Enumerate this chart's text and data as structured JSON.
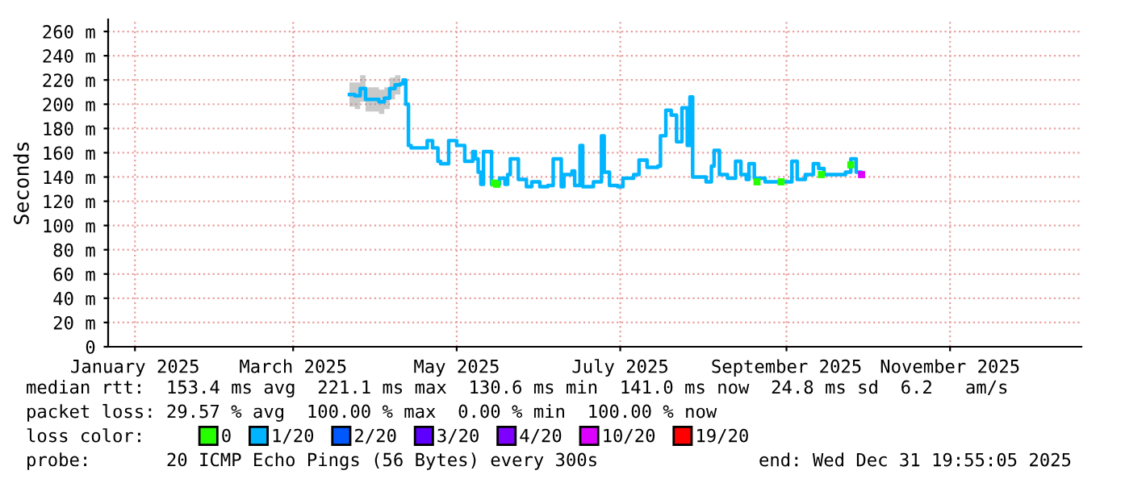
{
  "chart_data": {
    "type": "step",
    "ylabel": "Seconds",
    "x": [
      "2025-03-22",
      "2025-03-24",
      "2025-03-26",
      "2025-03-28",
      "2025-03-31",
      "2025-04-02",
      "2025-04-04",
      "2025-04-06",
      "2025-04-08",
      "2025-04-10",
      "2025-04-11",
      "2025-04-12",
      "2025-04-13",
      "2025-04-14",
      "2025-04-18",
      "2025-04-20",
      "2025-04-22",
      "2025-04-24",
      "2025-04-25",
      "2025-04-28",
      "2025-05-01",
      "2025-05-04",
      "2025-05-05",
      "2025-05-07",
      "2025-05-08",
      "2025-05-09",
      "2025-05-10",
      "2025-05-11",
      "2025-05-14",
      "2025-05-17",
      "2025-05-19",
      "2025-05-20",
      "2025-05-21",
      "2025-05-24",
      "2025-05-27",
      "2025-05-29",
      "2025-06-01",
      "2025-06-04",
      "2025-06-05",
      "2025-06-06",
      "2025-06-09",
      "2025-06-10",
      "2025-06-13",
      "2025-06-14",
      "2025-06-16",
      "2025-06-17",
      "2025-06-21",
      "2025-06-24",
      "2025-06-25",
      "2025-06-27",
      "2025-06-30",
      "2025-07-02",
      "2025-07-06",
      "2025-07-08",
      "2025-07-11",
      "2025-07-15",
      "2025-07-16",
      "2025-07-18",
      "2025-07-20",
      "2025-07-22",
      "2025-07-24",
      "2025-07-26",
      "2025-07-27",
      "2025-07-28",
      "2025-08-02",
      "2025-08-04",
      "2025-08-05",
      "2025-08-07",
      "2025-08-10",
      "2025-08-13",
      "2025-08-15",
      "2025-08-17",
      "2025-08-18",
      "2025-08-20",
      "2025-08-24",
      "2025-08-30",
      "2025-09-01",
      "2025-09-03",
      "2025-09-05",
      "2025-09-08",
      "2025-09-11",
      "2025-09-13",
      "2025-09-15",
      "2025-09-19",
      "2025-09-23",
      "2025-09-25",
      "2025-09-27",
      "2025-09-29"
    ],
    "series": [
      {
        "name": "1/20",
        "color": "#00b4ff",
        "values": [
          208,
          207,
          213,
          204,
          204,
          202,
          205,
          213,
          216,
          217,
          220,
          200,
          166,
          164,
          164,
          170,
          164,
          153,
          151,
          170,
          166,
          153,
          153,
          161,
          155,
          144,
          134,
          161,
          134,
          139,
          134,
          142,
          155,
          138,
          132,
          136,
          132,
          133,
          133,
          155,
          132,
          142,
          145,
          133,
          166,
          132,
          136,
          174,
          144,
          133,
          132,
          139,
          142,
          154,
          148,
          149,
          174,
          195,
          191,
          169,
          197,
          166,
          206,
          140,
          136,
          149,
          162,
          142,
          139,
          153,
          142,
          138,
          151,
          139,
          136,
          136,
          136,
          153,
          138,
          142,
          151,
          147,
          142,
          142,
          144,
          155,
          144,
          142
        ],
        "lower": [
          198,
          196,
          202,
          194,
          194,
          192,
          196,
          204,
          208,
          210,
          null,
          null,
          null,
          null,
          null,
          null,
          null,
          null,
          null,
          null,
          null,
          null,
          null,
          null,
          null,
          null,
          null,
          null,
          null,
          null,
          null,
          null,
          null,
          null,
          null,
          null,
          null,
          null,
          null,
          null,
          null,
          null,
          null,
          null,
          null,
          null,
          null,
          null,
          null,
          null,
          null,
          null,
          null,
          null,
          null,
          null,
          null,
          null,
          null,
          null,
          null,
          null,
          null,
          null,
          null,
          null,
          null,
          null,
          null,
          null,
          null,
          null,
          null,
          null,
          null,
          null,
          null,
          null,
          null,
          null,
          null,
          null,
          null,
          null,
          null,
          null,
          null,
          null
        ],
        "upper": [
          218,
          218,
          224,
          214,
          214,
          212,
          214,
          222,
          224,
          226,
          null,
          null,
          null,
          null,
          null,
          null,
          null,
          null,
          null,
          null,
          null,
          null,
          null,
          null,
          null,
          null,
          null,
          null,
          null,
          null,
          null,
          null,
          null,
          null,
          null,
          null,
          null,
          null,
          null,
          null,
          null,
          null,
          null,
          null,
          null,
          null,
          null,
          null,
          null,
          null,
          null,
          null,
          null,
          null,
          null,
          null,
          null,
          null,
          null,
          null,
          null,
          null,
          null,
          null,
          null,
          null,
          null,
          null,
          null,
          null,
          null,
          null,
          null,
          null,
          null,
          null,
          null,
          null,
          null,
          null,
          null,
          null,
          null,
          null,
          null,
          null,
          null,
          null
        ]
      },
      {
        "name": "0",
        "color": "#26ff00",
        "type": "scatter",
        "marker": "square",
        "x": [
          "2025-05-15",
          "2025-05-16",
          "2025-08-21",
          "2025-08-30",
          "2025-09-14",
          "2025-09-25"
        ],
        "values": [
          135,
          134,
          136,
          136,
          142,
          150
        ]
      },
      {
        "name": "2/20",
        "color": "#0059ff",
        "type": "scatter",
        "values": [
          null,
          null,
          null,
          null,
          null,
          null,
          null,
          null,
          null,
          null,
          null,
          null,
          null,
          null,
          null,
          null,
          null,
          null,
          null,
          null,
          null,
          null,
          null,
          null,
          null,
          null,
          null,
          null,
          null,
          null,
          null,
          null,
          null,
          null,
          null,
          null,
          null,
          null,
          null,
          null,
          null,
          null,
          null,
          null,
          null,
          null,
          null,
          null,
          null,
          null,
          null,
          null,
          null,
          null,
          null,
          null,
          null,
          null,
          null,
          null,
          null,
          null,
          null,
          null,
          null,
          null,
          null,
          null,
          null,
          null,
          null,
          null,
          null,
          null,
          null,
          null,
          null,
          null,
          null,
          null,
          null,
          null,
          null,
          null,
          null,
          null,
          null,
          null
        ]
      },
      {
        "name": "3/20",
        "color": "#5e00ff",
        "type": "scatter",
        "values": [
          null,
          null,
          null,
          null,
          null,
          null,
          null,
          null,
          null,
          null,
          null,
          null,
          null,
          null,
          null,
          null,
          null,
          null,
          null,
          null,
          null,
          null,
          null,
          null,
          null,
          null,
          null,
          null,
          null,
          null,
          null,
          null,
          null,
          null,
          null,
          null,
          null,
          null,
          null,
          null,
          null,
          null,
          null,
          null,
          null,
          null,
          null,
          null,
          null,
          null,
          null,
          null,
          null,
          null,
          null,
          null,
          null,
          null,
          null,
          null,
          null,
          null,
          null,
          null,
          null,
          null,
          null,
          null,
          null,
          null,
          null,
          null,
          null,
          null,
          null,
          null,
          null,
          null,
          null,
          null,
          null,
          null,
          null,
          null,
          null,
          null,
          null,
          null
        ]
      },
      {
        "name": "4/20",
        "color": "#7e00ff",
        "type": "scatter",
        "values": [
          null,
          null,
          null,
          null,
          null,
          null,
          null,
          null,
          null,
          null,
          null,
          null,
          null,
          null,
          null,
          null,
          null,
          null,
          null,
          null,
          null,
          null,
          null,
          null,
          null,
          null,
          null,
          null,
          null,
          null,
          null,
          null,
          null,
          null,
          null,
          null,
          null,
          null,
          null,
          null,
          null,
          null,
          null,
          null,
          null,
          null,
          null,
          null,
          null,
          null,
          null,
          null,
          null,
          null,
          null,
          null,
          null,
          null,
          null,
          null,
          null,
          null,
          null,
          null,
          null,
          null,
          null,
          null,
          null,
          null,
          null,
          null,
          null,
          null,
          null,
          null,
          null,
          null,
          null,
          null,
          null,
          null,
          null,
          null,
          null,
          null,
          null,
          null
        ]
      },
      {
        "name": "10/20",
        "color": "#dd00ff",
        "type": "scatter",
        "marker": "square",
        "x": [
          "2025-09-29"
        ],
        "values": [
          142
        ]
      },
      {
        "name": "19/20",
        "color": "#ff0000",
        "type": "scatter",
        "values": [
          null,
          null,
          null,
          null,
          null,
          null,
          null,
          null,
          null,
          null,
          null,
          null,
          null,
          null,
          null,
          null,
          null,
          null,
          null,
          null,
          null,
          null,
          null,
          null,
          null,
          null,
          null,
          null,
          null,
          null,
          null,
          null,
          null,
          null,
          null,
          null,
          null,
          null,
          null,
          null,
          null,
          null,
          null,
          null,
          null,
          null,
          null,
          null,
          null,
          null,
          null,
          null,
          null,
          null,
          null,
          null,
          null,
          null,
          null,
          null,
          null,
          null,
          null,
          null,
          null,
          null,
          null,
          null,
          null,
          null,
          null,
          null,
          null,
          null,
          null,
          null,
          null,
          null,
          null,
          null,
          null,
          null,
          null,
          null,
          null,
          null,
          null,
          null
        ]
      }
    ],
    "legend": "bottom",
    "legend_title": "loss color:",
    "xlim": [
      "2024-12-22",
      "2025-12-20"
    ],
    "xticks": [
      {
        "value": "2025-01-01",
        "label": "January 2025"
      },
      {
        "value": "2025-03-01",
        "label": "March 2025"
      },
      {
        "value": "2025-05-01",
        "label": "May 2025"
      },
      {
        "value": "2025-07-01",
        "label": "July 2025"
      },
      {
        "value": "2025-09-01",
        "label": "September 2025"
      },
      {
        "value": "2025-11-01",
        "label": "November 2025"
      }
    ],
    "ylim": [
      0,
      270
    ],
    "yticks": [
      0,
      {
        "value": 20,
        "label": "20 m"
      },
      {
        "value": 40,
        "label": "40 m"
      },
      {
        "value": 60,
        "label": "60 m"
      },
      {
        "value": 80,
        "label": "80 m"
      },
      {
        "value": 100,
        "label": "100 m"
      },
      {
        "value": 120,
        "label": "120 m"
      },
      {
        "value": 140,
        "label": "140 m"
      },
      {
        "value": 160,
        "label": "160 m"
      },
      {
        "value": 180,
        "label": "180 m"
      },
      {
        "value": 200,
        "label": "200 m"
      },
      {
        "value": 220,
        "label": "220 m"
      },
      {
        "value": 240,
        "label": "240 m"
      },
      {
        "value": 260,
        "label": "260 m"
      }
    ],
    "grid": true,
    "annotations": [
      "median rtt:  153.4 ms avg  221.1 ms max  130.6 ms min  141.0 ms now  24.8 ms sd  6.2   am/s",
      "packet loss: 29.57 % avg  100.00 % max  0.00 % min  100.00 % now",
      "probe:       20 ICMP Echo Pings (56 Bytes) every 300s",
      "end: Wed Dec 31 19:55:05 2025"
    ]
  }
}
